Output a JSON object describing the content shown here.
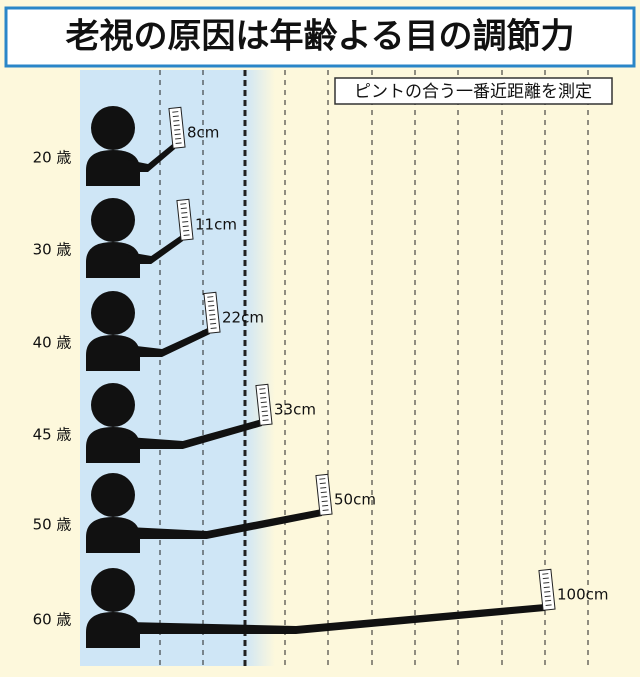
{
  "header": {
    "title": "老視の原因は年齢よる目の調節力",
    "subtitle": "ピントの合う一番近距離を測定"
  },
  "rows": [
    {
      "age": "20 歳",
      "distance": "8cm"
    },
    {
      "age": "30 歳",
      "distance": "11cm"
    },
    {
      "age": "40 歳",
      "distance": "22cm"
    },
    {
      "age": "45 歳",
      "distance": "33cm"
    },
    {
      "age": "50 歳",
      "distance": "50cm"
    },
    {
      "age": "60 歳",
      "distance": "100cm"
    }
  ]
}
